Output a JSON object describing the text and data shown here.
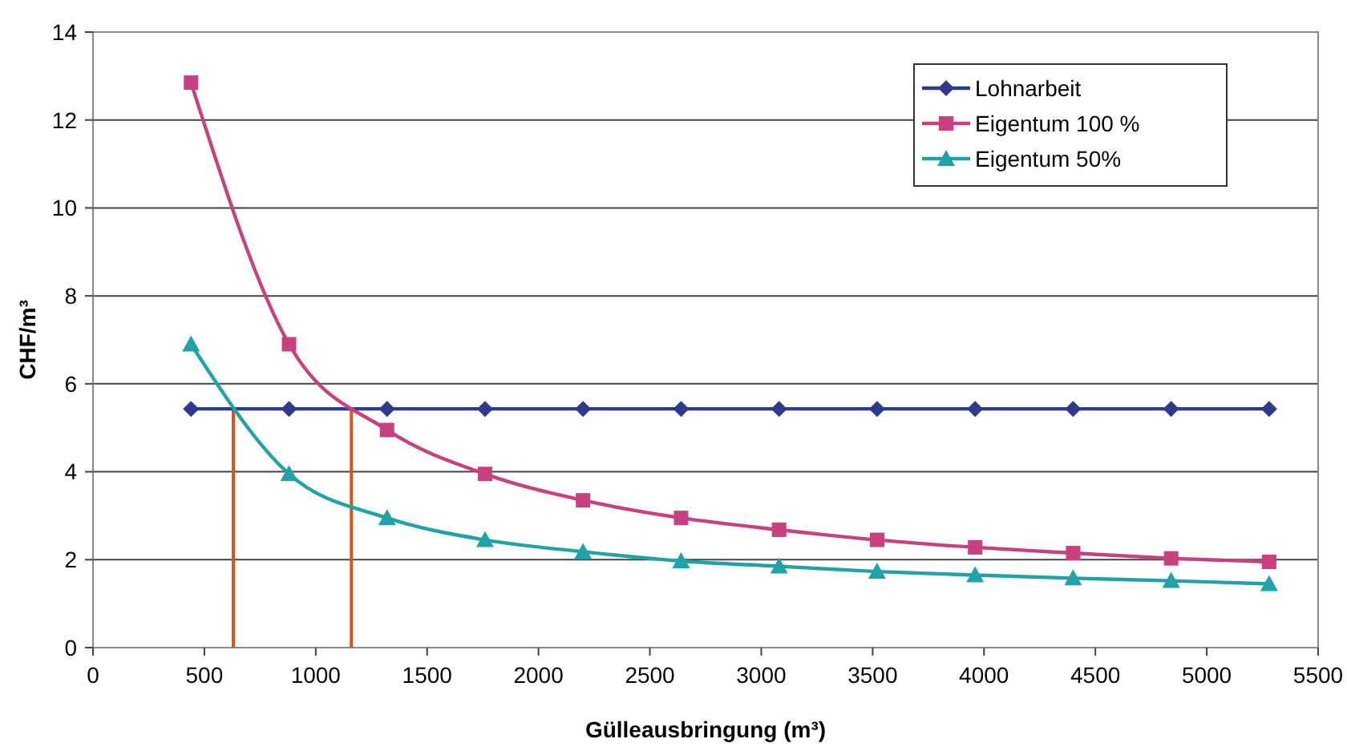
{
  "chart_data": {
    "type": "line",
    "xlabel": "Gülleausbringung (m³)",
    "ylabel": "CHF/m³",
    "x": [
      440,
      880,
      1320,
      1760,
      2200,
      2640,
      3080,
      3520,
      3960,
      4400,
      4840,
      5280
    ],
    "series": [
      {
        "name": "Lohnarbeit",
        "color": "#2e3a8c",
        "marker": "diamond",
        "values": [
          5.43,
          5.43,
          5.43,
          5.43,
          5.43,
          5.43,
          5.43,
          5.43,
          5.43,
          5.43,
          5.43,
          5.43
        ]
      },
      {
        "name": "Eigentum 100 %",
        "color": "#c8407f",
        "marker": "square",
        "values": [
          12.85,
          6.9,
          4.95,
          3.95,
          3.35,
          2.95,
          2.68,
          2.45,
          2.28,
          2.15,
          2.03,
          1.95
        ]
      },
      {
        "name": "Eigentum 50%",
        "color": "#1fa3a8",
        "marker": "triangle",
        "values": [
          6.9,
          3.95,
          2.95,
          2.45,
          2.18,
          1.97,
          1.85,
          1.73,
          1.65,
          1.58,
          1.52,
          1.45
        ]
      }
    ],
    "xlim": [
      0,
      5500
    ],
    "xticks": [
      0,
      500,
      1000,
      1500,
      2000,
      2500,
      3000,
      3500,
      4000,
      4500,
      5000,
      5500
    ],
    "ylim": [
      0,
      14
    ],
    "yticks": [
      0,
      2,
      4,
      6,
      8,
      10,
      12,
      14
    ],
    "ref_lines": [
      {
        "axis": "x",
        "value": 630,
        "color": "#d9541a"
      },
      {
        "axis": "x",
        "value": 1160,
        "color": "#d9541a"
      }
    ],
    "grid": "y",
    "legend": "top right",
    "line_style": "solid"
  }
}
